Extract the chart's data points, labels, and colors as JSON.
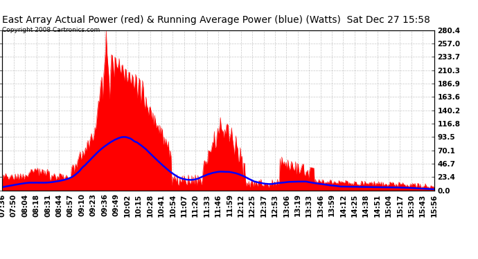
{
  "title": "East Array Actual Power (red) & Running Average Power (blue) (Watts)  Sat Dec 27 15:58",
  "copyright": "Copyright 2008 Cartronics.com",
  "ylabel_right_ticks": [
    0.0,
    23.4,
    46.7,
    70.1,
    93.5,
    116.8,
    140.2,
    163.6,
    186.9,
    210.3,
    233.7,
    257.0,
    280.4
  ],
  "ylim": [
    0,
    280.4
  ],
  "bg_color": "#ffffff",
  "grid_color": "#b0b0b0",
  "actual_color": "red",
  "avg_color": "blue",
  "title_fontsize": 10,
  "copyright_fontsize": 6.5,
  "tick_fontsize": 7.5,
  "x_labels": [
    "07:36",
    "07:50",
    "08:04",
    "08:18",
    "08:31",
    "08:44",
    "08:57",
    "09:10",
    "09:23",
    "09:36",
    "09:49",
    "10:02",
    "10:15",
    "10:28",
    "10:41",
    "10:54",
    "11:07",
    "11:20",
    "11:33",
    "11:46",
    "11:59",
    "12:12",
    "12:25",
    "12:37",
    "12:53",
    "13:06",
    "13:19",
    "13:33",
    "13:46",
    "13:59",
    "14:12",
    "14:25",
    "14:38",
    "14:51",
    "15:04",
    "15:17",
    "15:30",
    "15:43",
    "15:56"
  ]
}
